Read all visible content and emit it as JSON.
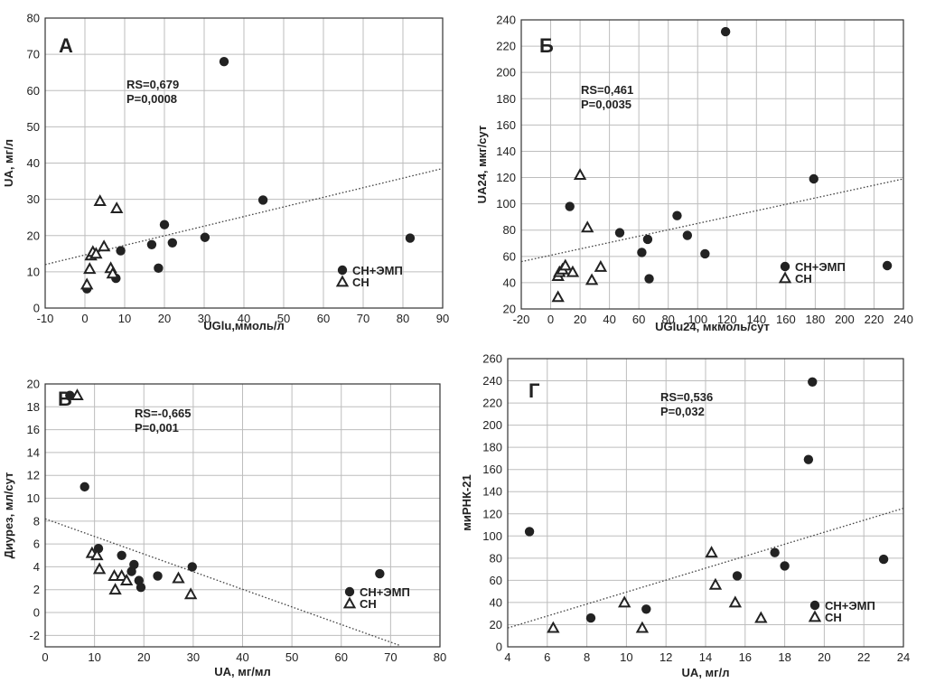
{
  "figure": {
    "colors": {
      "marker": "#222222",
      "grid": "#bdbdbd",
      "axis": "#333333",
      "trend": "#444444"
    }
  },
  "chart_data": [
    {
      "type": "scatter",
      "panel_label": "А",
      "xlabel": "UGlu,ммоль/л",
      "ylabel": "UA, мг/л",
      "xlim": [
        -10,
        90
      ],
      "ylim": [
        0,
        80
      ],
      "x_ticks": [
        "-10",
        "0",
        "10",
        "20",
        "30",
        "40",
        "50",
        "60",
        "70",
        "80",
        "90"
      ],
      "y_ticks": [
        "0",
        "10",
        "20",
        "30",
        "40",
        "50",
        "60",
        "70",
        "80"
      ],
      "annotation": [
        "RS=0,679",
        "P=0,0008"
      ],
      "trend_line": [
        [
          -10,
          12
        ],
        [
          90,
          38.5
        ]
      ],
      "legend": {
        "placement": "bottom-right",
        "entries": [
          "СН+ЭМП",
          "СН"
        ]
      },
      "series": [
        {
          "name": "СН+ЭМП",
          "marker": "circle",
          "points": [
            [
              0.5,
              5.3
            ],
            [
              7.8,
              8.2
            ],
            [
              9,
              15.8
            ],
            [
              16.8,
              17.5
            ],
            [
              18.5,
              11
            ],
            [
              20,
              23
            ],
            [
              22,
              18
            ],
            [
              30.2,
              19.5
            ],
            [
              35,
              68
            ],
            [
              44.8,
              29.8
            ],
            [
              81.8,
              19.3
            ]
          ]
        },
        {
          "name": "СН",
          "marker": "triangle",
          "points": [
            [
              0.5,
              6.5
            ],
            [
              1.2,
              10.8
            ],
            [
              1.5,
              14.5
            ],
            [
              2,
              15.5
            ],
            [
              2.8,
              15
            ],
            [
              3.8,
              29.5
            ],
            [
              4.8,
              17
            ],
            [
              6.5,
              11
            ],
            [
              7,
              9.5
            ],
            [
              8,
              27.5
            ]
          ]
        }
      ]
    },
    {
      "type": "scatter",
      "panel_label": "Б",
      "xlabel": "UGlu24, мкмоль/сут",
      "ylabel": "UA24, мкг/сут",
      "xlim": [
        -20,
        240
      ],
      "ylim": [
        20,
        240
      ],
      "x_ticks": [
        "-20",
        "0",
        "20",
        "40",
        "60",
        "80",
        "100",
        "120",
        "140",
        "160",
        "180",
        "200",
        "220",
        "240"
      ],
      "y_ticks": [
        "20",
        "40",
        "60",
        "80",
        "100",
        "120",
        "140",
        "160",
        "180",
        "200",
        "220",
        "240"
      ],
      "annotation": [
        "RS=0,461",
        "P=0,0035"
      ],
      "trend_line": [
        [
          -20,
          56
        ],
        [
          240,
          119
        ]
      ],
      "legend": {
        "placement": "bottom-right",
        "entries": [
          "СН+ЭМП",
          "СН"
        ]
      },
      "series": [
        {
          "name": "СН+ЭМП",
          "marker": "circle",
          "points": [
            [
              13,
              98
            ],
            [
              47,
              78
            ],
            [
              62,
              63
            ],
            [
              66,
              73
            ],
            [
              67,
              43
            ],
            [
              86,
              91
            ],
            [
              93,
              76
            ],
            [
              105,
              62
            ],
            [
              119,
              231
            ],
            [
              179,
              119
            ],
            [
              229,
              53
            ]
          ]
        },
        {
          "name": "СН",
          "marker": "triangle",
          "points": [
            [
              5,
              29
            ],
            [
              5,
              45
            ],
            [
              6,
              48
            ],
            [
              8,
              50
            ],
            [
              10,
              53
            ],
            [
              15,
              48
            ],
            [
              20,
              122
            ],
            [
              25,
              82
            ],
            [
              28,
              42
            ],
            [
              34,
              52
            ]
          ]
        }
      ]
    },
    {
      "type": "scatter",
      "panel_label": "В",
      "xlabel": "UA, мг/мл",
      "ylabel": "Диурез, мл/сут",
      "xlim": [
        0,
        80
      ],
      "ylim": [
        -3,
        20
      ],
      "x_ticks": [
        "0",
        "10",
        "20",
        "30",
        "40",
        "50",
        "60",
        "70",
        "80"
      ],
      "y_ticks": [
        "-2",
        "0",
        "2",
        "4",
        "6",
        "8",
        "10",
        "12",
        "14",
        "16",
        "18",
        "20"
      ],
      "annotation": [
        "RS=-0,665",
        "P=0,001"
      ],
      "trend_line": [
        [
          0,
          8.2
        ],
        [
          72,
          -2.9
        ]
      ],
      "legend": {
        "placement": "bottom-right",
        "entries": [
          "СН+ЭМП",
          "СН"
        ]
      },
      "series": [
        {
          "name": "СН+ЭМП",
          "marker": "circle",
          "points": [
            [
              5,
              19
            ],
            [
              8,
              11
            ],
            [
              10.8,
              5.6
            ],
            [
              15.5,
              5
            ],
            [
              17.5,
              3.6
            ],
            [
              18,
              4.2
            ],
            [
              19,
              2.8
            ],
            [
              19.4,
              2.2
            ],
            [
              22.8,
              3.2
            ],
            [
              29.8,
              4
            ],
            [
              67.8,
              3.4
            ]
          ]
        },
        {
          "name": "СН",
          "marker": "triangle",
          "points": [
            [
              6.5,
              19
            ],
            [
              9.5,
              5.2
            ],
            [
              10.5,
              5
            ],
            [
              11,
              3.8
            ],
            [
              14,
              3.2
            ],
            [
              14.2,
              2
            ],
            [
              15.5,
              3.2
            ],
            [
              16.5,
              2.8
            ],
            [
              27,
              3
            ],
            [
              29.5,
              1.6
            ]
          ]
        }
      ]
    },
    {
      "type": "scatter",
      "panel_label": "Г",
      "xlabel": "UA, мг/л",
      "ylabel": "миРНК-21",
      "xlim": [
        4,
        24
      ],
      "ylim": [
        0,
        260
      ],
      "x_ticks": [
        "4",
        "6",
        "8",
        "10",
        "12",
        "14",
        "16",
        "18",
        "20",
        "22",
        "24"
      ],
      "y_ticks": [
        "0",
        "20",
        "40",
        "60",
        "80",
        "100",
        "120",
        "140",
        "160",
        "180",
        "200",
        "220",
        "240",
        "260"
      ],
      "annotation": [
        "RS=0,536",
        "P=0,032"
      ],
      "trend_line": [
        [
          4,
          17
        ],
        [
          24,
          125
        ]
      ],
      "legend": {
        "placement": "bottom-right",
        "entries": [
          "СН+ЭМП",
          "СН"
        ]
      },
      "series": [
        {
          "name": "СН+ЭМП",
          "marker": "circle",
          "points": [
            [
              5.1,
              104
            ],
            [
              8.2,
              26
            ],
            [
              11,
              34
            ],
            [
              15.6,
              64
            ],
            [
              17.5,
              85
            ],
            [
              18,
              73
            ],
            [
              19.2,
              169
            ],
            [
              19.4,
              239
            ],
            [
              23,
              79
            ]
          ]
        },
        {
          "name": "СН",
          "marker": "triangle",
          "points": [
            [
              6.3,
              17
            ],
            [
              9.9,
              40
            ],
            [
              10.8,
              17
            ],
            [
              14.3,
              85
            ],
            [
              14.5,
              56
            ],
            [
              15.5,
              40
            ],
            [
              16.8,
              26
            ]
          ]
        }
      ]
    }
  ]
}
